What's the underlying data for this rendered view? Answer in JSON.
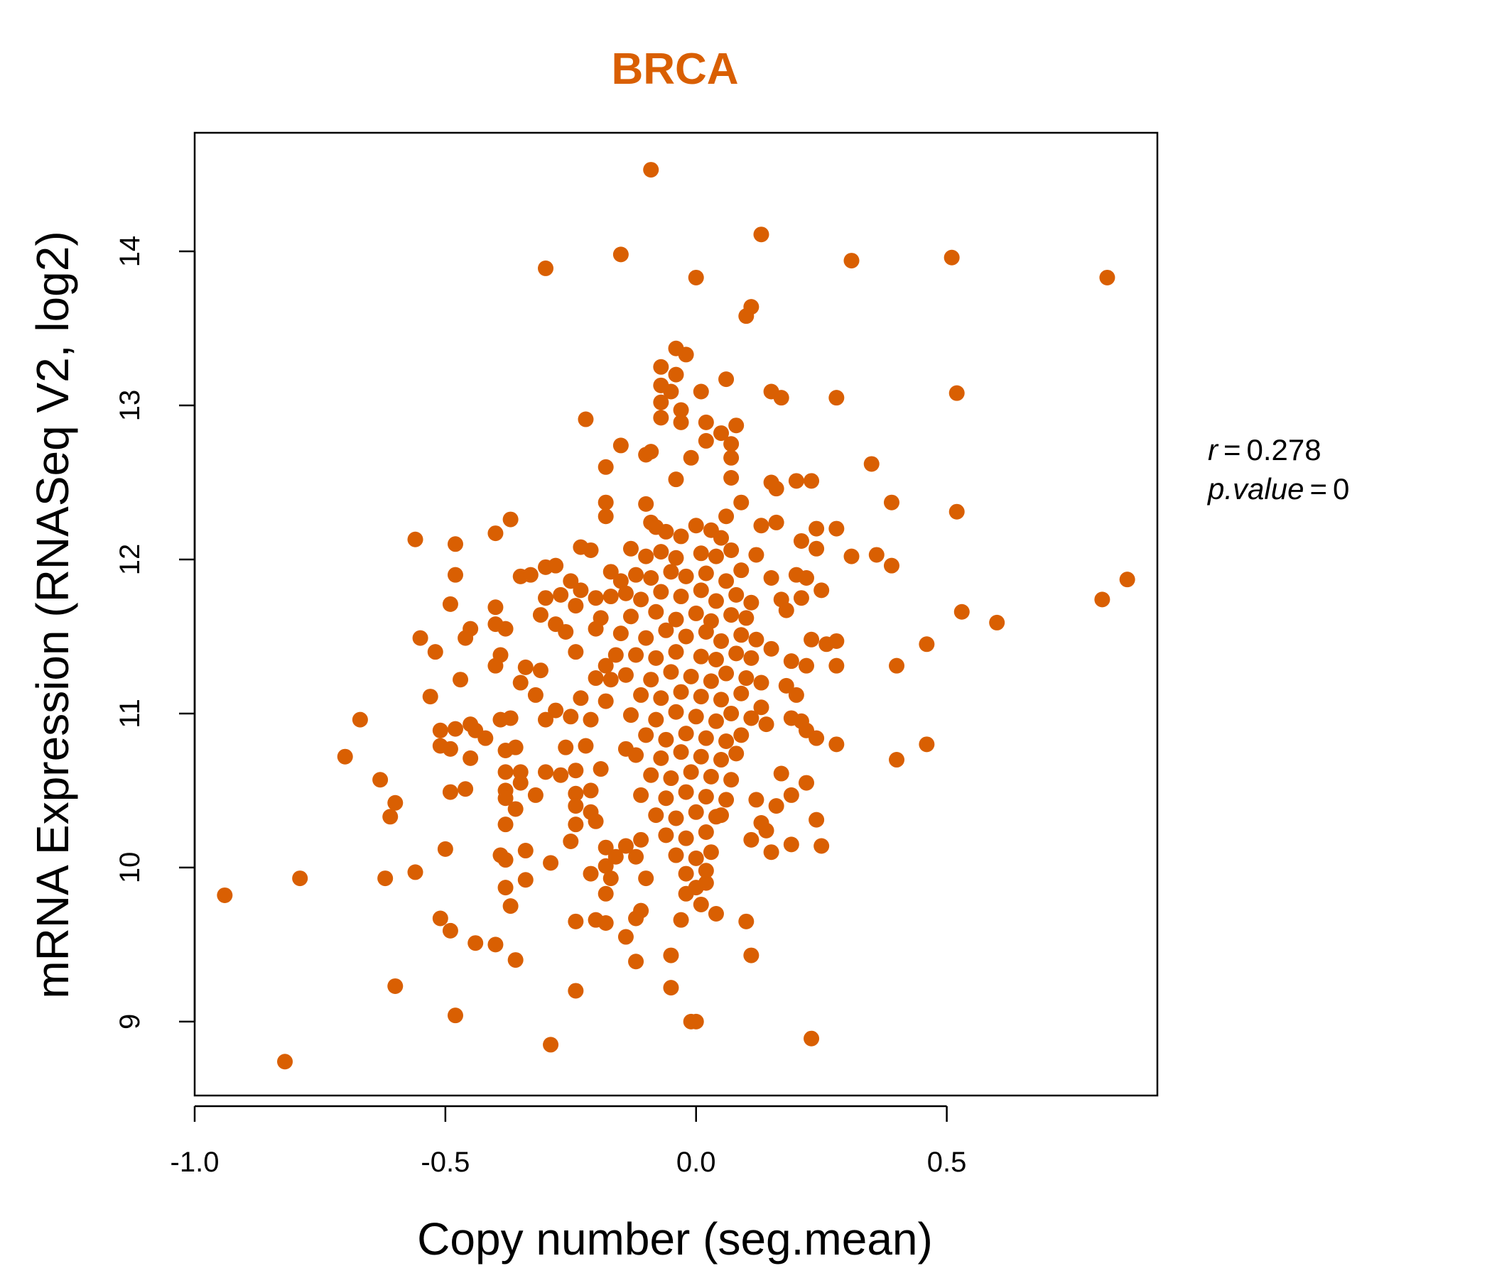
{
  "chart_data": {
    "type": "scatter",
    "title": "BRCA",
    "xlabel": "Copy number (seg.mean)",
    "ylabel": "mRNA Expression (RNASeq V2, log2)",
    "xlim": [
      -1.0,
      0.92
    ],
    "ylim": [
      8.52,
      14.77
    ],
    "x_ticks": [
      -1.0,
      -0.5,
      0.0,
      0.5
    ],
    "x_tick_labels": [
      "-1.0",
      "-0.5",
      "0.0",
      "0.5"
    ],
    "y_ticks": [
      9,
      10,
      11,
      12,
      13,
      14
    ],
    "y_tick_labels": [
      "9",
      "10",
      "11",
      "12",
      "13",
      "14"
    ],
    "grid": false,
    "legend": "none",
    "point_color": "#D95F02",
    "stats": {
      "r_symbol": "r",
      "r_value": "0.278",
      "p_symbol": "p.value",
      "p_value": "0"
    },
    "points": [
      [
        -0.09,
        14.53
      ],
      [
        0.13,
        14.11
      ],
      [
        -0.3,
        13.89
      ],
      [
        -0.15,
        13.98
      ],
      [
        0.0,
        13.83
      ],
      [
        0.31,
        13.94
      ],
      [
        0.51,
        13.96
      ],
      [
        0.82,
        13.83
      ],
      [
        0.11,
        13.64
      ],
      [
        0.1,
        13.58
      ],
      [
        -0.04,
        13.37
      ],
      [
        -0.02,
        13.33
      ],
      [
        -0.07,
        13.25
      ],
      [
        -0.04,
        13.2
      ],
      [
        0.06,
        13.17
      ],
      [
        -0.07,
        13.13
      ],
      [
        -0.05,
        13.09
      ],
      [
        0.01,
        13.09
      ],
      [
        0.15,
        13.09
      ],
      [
        0.17,
        13.05
      ],
      [
        0.28,
        13.05
      ],
      [
        0.52,
        13.08
      ],
      [
        -0.07,
        13.02
      ],
      [
        -0.03,
        12.97
      ],
      [
        -0.22,
        12.91
      ],
      [
        -0.07,
        12.92
      ],
      [
        -0.03,
        12.89
      ],
      [
        0.02,
        12.89
      ],
      [
        0.08,
        12.87
      ],
      [
        0.05,
        12.82
      ],
      [
        -0.15,
        12.74
      ],
      [
        -0.1,
        12.68
      ],
      [
        -0.09,
        12.7
      ],
      [
        0.02,
        12.77
      ],
      [
        0.07,
        12.75
      ],
      [
        -0.01,
        12.66
      ],
      [
        0.07,
        12.66
      ],
      [
        -0.18,
        12.6
      ],
      [
        -0.04,
        12.52
      ],
      [
        0.07,
        12.53
      ],
      [
        0.15,
        12.5
      ],
      [
        0.2,
        12.51
      ],
      [
        0.23,
        12.51
      ],
      [
        0.35,
        12.62
      ],
      [
        0.16,
        12.46
      ],
      [
        -0.18,
        12.37
      ],
      [
        -0.1,
        12.36
      ],
      [
        0.09,
        12.37
      ],
      [
        0.39,
        12.37
      ],
      [
        -0.37,
        12.26
      ],
      [
        -0.18,
        12.28
      ],
      [
        -0.09,
        12.24
      ],
      [
        0.06,
        12.28
      ],
      [
        0.13,
        12.22
      ],
      [
        0.16,
        12.24
      ],
      [
        0.24,
        12.2
      ],
      [
        0.28,
        12.2
      ],
      [
        0.52,
        12.31
      ],
      [
        -0.56,
        12.13
      ],
      [
        -0.4,
        12.17
      ],
      [
        -0.21,
        12.06
      ],
      [
        -0.23,
        12.08
      ],
      [
        -0.13,
        12.07
      ],
      [
        0.12,
        12.03
      ],
      [
        0.21,
        12.12
      ],
      [
        0.24,
        12.07
      ],
      [
        0.31,
        12.02
      ],
      [
        0.36,
        12.03
      ],
      [
        -0.48,
        12.1
      ],
      [
        -0.3,
        11.95
      ],
      [
        -0.28,
        11.96
      ],
      [
        -0.35,
        11.89
      ],
      [
        -0.33,
        11.9
      ],
      [
        -0.17,
        11.92
      ],
      [
        -0.15,
        11.86
      ],
      [
        0.15,
        11.88
      ],
      [
        0.2,
        11.9
      ],
      [
        0.22,
        11.88
      ],
      [
        0.39,
        11.96
      ],
      [
        -0.48,
        11.9
      ],
      [
        -0.25,
        11.86
      ],
      [
        -0.23,
        11.8
      ],
      [
        -0.3,
        11.75
      ],
      [
        -0.27,
        11.77
      ],
      [
        -0.2,
        11.75
      ],
      [
        -0.17,
        11.76
      ],
      [
        0.17,
        11.74
      ],
      [
        0.21,
        11.75
      ],
      [
        0.25,
        11.8
      ],
      [
        0.81,
        11.74
      ],
      [
        0.86,
        11.87
      ],
      [
        -0.49,
        11.71
      ],
      [
        -0.4,
        11.69
      ],
      [
        -0.38,
        11.55
      ],
      [
        -0.31,
        11.64
      ],
      [
        -0.28,
        11.58
      ],
      [
        -0.24,
        11.7
      ],
      [
        -0.19,
        11.62
      ],
      [
        0.18,
        11.67
      ],
      [
        0.53,
        11.66
      ],
      [
        0.6,
        11.59
      ],
      [
        -0.45,
        11.55
      ],
      [
        -0.46,
        11.49
      ],
      [
        -0.55,
        11.49
      ],
      [
        -0.4,
        11.58
      ],
      [
        -0.26,
        11.53
      ],
      [
        -0.2,
        11.55
      ],
      [
        0.23,
        11.48
      ],
      [
        0.26,
        11.45
      ],
      [
        0.28,
        11.47
      ],
      [
        0.46,
        11.45
      ],
      [
        -0.52,
        11.4
      ],
      [
        -0.39,
        11.38
      ],
      [
        -0.24,
        11.4
      ],
      [
        -0.16,
        11.38
      ],
      [
        0.15,
        11.42
      ],
      [
        0.19,
        11.34
      ],
      [
        -0.4,
        11.31
      ],
      [
        -0.34,
        11.3
      ],
      [
        -0.31,
        11.28
      ],
      [
        -0.18,
        11.31
      ],
      [
        0.22,
        11.31
      ],
      [
        0.28,
        11.31
      ],
      [
        0.4,
        11.31
      ],
      [
        -0.47,
        11.22
      ],
      [
        -0.35,
        11.2
      ],
      [
        -0.2,
        11.23
      ],
      [
        -0.17,
        11.22
      ],
      [
        0.13,
        11.2
      ],
      [
        0.18,
        11.18
      ],
      [
        -0.53,
        11.11
      ],
      [
        -0.32,
        11.12
      ],
      [
        -0.23,
        11.1
      ],
      [
        -0.18,
        11.08
      ],
      [
        0.2,
        11.12
      ],
      [
        0.13,
        11.04
      ],
      [
        -0.28,
        11.02
      ],
      [
        -0.25,
        10.98
      ],
      [
        -0.37,
        10.97
      ],
      [
        -0.39,
        10.96
      ],
      [
        -0.3,
        10.96
      ],
      [
        -0.21,
        10.96
      ],
      [
        0.19,
        10.97
      ],
      [
        0.21,
        10.95
      ],
      [
        -0.67,
        10.96
      ],
      [
        -0.51,
        10.89
      ],
      [
        -0.48,
        10.9
      ],
      [
        -0.45,
        10.93
      ],
      [
        -0.44,
        10.89
      ],
      [
        0.14,
        10.93
      ],
      [
        0.22,
        10.89
      ],
      [
        -0.42,
        10.84
      ],
      [
        -0.38,
        10.76
      ],
      [
        -0.36,
        10.78
      ],
      [
        -0.26,
        10.78
      ],
      [
        -0.22,
        10.79
      ],
      [
        -0.14,
        10.77
      ],
      [
        0.24,
        10.84
      ],
      [
        0.28,
        10.8
      ],
      [
        0.46,
        10.8
      ],
      [
        -0.7,
        10.72
      ],
      [
        -0.51,
        10.79
      ],
      [
        -0.49,
        10.77
      ],
      [
        -0.45,
        10.71
      ],
      [
        -0.38,
        10.62
      ],
      [
        -0.35,
        10.62
      ],
      [
        -0.3,
        10.62
      ],
      [
        -0.27,
        10.6
      ],
      [
        -0.24,
        10.63
      ],
      [
        -0.19,
        10.64
      ],
      [
        0.17,
        10.61
      ],
      [
        0.4,
        10.7
      ],
      [
        -0.63,
        10.57
      ],
      [
        -0.38,
        10.5
      ],
      [
        -0.35,
        10.55
      ],
      [
        -0.32,
        10.47
      ],
      [
        -0.24,
        10.48
      ],
      [
        -0.21,
        10.5
      ],
      [
        0.12,
        10.44
      ],
      [
        0.19,
        10.47
      ],
      [
        0.22,
        10.55
      ],
      [
        -0.49,
        10.49
      ],
      [
        -0.46,
        10.51
      ],
      [
        -0.6,
        10.42
      ],
      [
        -0.38,
        10.45
      ],
      [
        -0.36,
        10.38
      ],
      [
        -0.24,
        10.4
      ],
      [
        -0.21,
        10.36
      ],
      [
        0.16,
        10.4
      ],
      [
        -0.61,
        10.33
      ],
      [
        -0.38,
        10.28
      ],
      [
        -0.24,
        10.28
      ],
      [
        -0.2,
        10.3
      ],
      [
        0.05,
        10.34
      ],
      [
        0.13,
        10.29
      ],
      [
        0.24,
        10.31
      ],
      [
        -0.25,
        10.17
      ],
      [
        -0.18,
        10.13
      ],
      [
        -0.16,
        10.07
      ],
      [
        -0.14,
        10.14
      ],
      [
        -0.11,
        10.18
      ],
      [
        0.11,
        10.18
      ],
      [
        0.14,
        10.24
      ],
      [
        0.19,
        10.15
      ],
      [
        -0.5,
        10.12
      ],
      [
        -0.39,
        10.08
      ],
      [
        -0.38,
        10.05
      ],
      [
        -0.34,
        10.11
      ],
      [
        -0.29,
        10.03
      ],
      [
        -0.18,
        10.01
      ],
      [
        -0.12,
        10.07
      ],
      [
        0.15,
        10.1
      ],
      [
        0.25,
        10.14
      ],
      [
        -0.79,
        9.93
      ],
      [
        -0.62,
        9.93
      ],
      [
        -0.56,
        9.97
      ],
      [
        -0.38,
        9.87
      ],
      [
        -0.34,
        9.92
      ],
      [
        -0.21,
        9.96
      ],
      [
        -0.17,
        9.93
      ],
      [
        -0.1,
        9.93
      ],
      [
        0.0,
        9.87
      ],
      [
        0.02,
        9.9
      ],
      [
        -0.94,
        9.82
      ],
      [
        -0.37,
        9.75
      ],
      [
        -0.18,
        9.83
      ],
      [
        -0.02,
        9.83
      ],
      [
        0.01,
        9.76
      ],
      [
        -0.51,
        9.67
      ],
      [
        -0.49,
        9.59
      ],
      [
        -0.24,
        9.65
      ],
      [
        -0.2,
        9.66
      ],
      [
        -0.18,
        9.64
      ],
      [
        -0.12,
        9.67
      ],
      [
        -0.11,
        9.72
      ],
      [
        -0.03,
        9.66
      ],
      [
        0.04,
        9.7
      ],
      [
        0.1,
        9.65
      ],
      [
        -0.44,
        9.51
      ],
      [
        -0.4,
        9.5
      ],
      [
        -0.36,
        9.4
      ],
      [
        -0.14,
        9.55
      ],
      [
        -0.12,
        9.39
      ],
      [
        -0.05,
        9.43
      ],
      [
        0.11,
        9.43
      ],
      [
        -0.6,
        9.23
      ],
      [
        -0.24,
        9.2
      ],
      [
        -0.05,
        9.22
      ],
      [
        -0.48,
        9.04
      ],
      [
        -0.01,
        9.0
      ],
      [
        0.0,
        9.0
      ],
      [
        -0.29,
        8.85
      ],
      [
        0.23,
        8.89
      ],
      [
        -0.82,
        8.74
      ],
      [
        -0.08,
        12.21
      ],
      [
        -0.06,
        12.18
      ],
      [
        -0.03,
        12.15
      ],
      [
        0.0,
        12.22
      ],
      [
        0.03,
        12.19
      ],
      [
        0.05,
        12.14
      ],
      [
        -0.1,
        12.02
      ],
      [
        -0.07,
        12.05
      ],
      [
        -0.04,
        12.01
      ],
      [
        0.01,
        12.04
      ],
      [
        0.04,
        12.02
      ],
      [
        0.07,
        12.06
      ],
      [
        -0.12,
        11.9
      ],
      [
        -0.09,
        11.88
      ],
      [
        -0.05,
        11.92
      ],
      [
        -0.02,
        11.89
      ],
      [
        0.02,
        11.91
      ],
      [
        0.06,
        11.86
      ],
      [
        0.09,
        11.93
      ],
      [
        -0.14,
        11.78
      ],
      [
        -0.11,
        11.74
      ],
      [
        -0.07,
        11.79
      ],
      [
        -0.03,
        11.76
      ],
      [
        0.01,
        11.8
      ],
      [
        0.04,
        11.73
      ],
      [
        0.08,
        11.77
      ],
      [
        0.11,
        11.72
      ],
      [
        -0.13,
        11.63
      ],
      [
        -0.08,
        11.66
      ],
      [
        -0.04,
        11.61
      ],
      [
        0.0,
        11.65
      ],
      [
        0.03,
        11.6
      ],
      [
        0.07,
        11.64
      ],
      [
        0.1,
        11.62
      ],
      [
        -0.15,
        11.52
      ],
      [
        -0.1,
        11.49
      ],
      [
        -0.06,
        11.54
      ],
      [
        -0.02,
        11.5
      ],
      [
        0.02,
        11.53
      ],
      [
        0.05,
        11.47
      ],
      [
        0.09,
        11.51
      ],
      [
        0.12,
        11.48
      ],
      [
        -0.12,
        11.38
      ],
      [
        -0.08,
        11.36
      ],
      [
        -0.04,
        11.4
      ],
      [
        0.01,
        11.37
      ],
      [
        0.04,
        11.35
      ],
      [
        0.08,
        11.39
      ],
      [
        0.11,
        11.36
      ],
      [
        -0.14,
        11.25
      ],
      [
        -0.09,
        11.22
      ],
      [
        -0.05,
        11.27
      ],
      [
        -0.01,
        11.24
      ],
      [
        0.03,
        11.21
      ],
      [
        0.06,
        11.26
      ],
      [
        0.1,
        11.23
      ],
      [
        -0.11,
        11.12
      ],
      [
        -0.07,
        11.1
      ],
      [
        -0.03,
        11.14
      ],
      [
        0.01,
        11.11
      ],
      [
        0.05,
        11.09
      ],
      [
        0.09,
        11.13
      ],
      [
        -0.13,
        10.99
      ],
      [
        -0.08,
        10.96
      ],
      [
        -0.04,
        11.01
      ],
      [
        0.0,
        10.98
      ],
      [
        0.04,
        10.95
      ],
      [
        0.07,
        11.0
      ],
      [
        0.11,
        10.97
      ],
      [
        -0.1,
        10.86
      ],
      [
        -0.06,
        10.83
      ],
      [
        -0.02,
        10.87
      ],
      [
        0.02,
        10.84
      ],
      [
        0.06,
        10.82
      ],
      [
        0.09,
        10.86
      ],
      [
        -0.12,
        10.73
      ],
      [
        -0.07,
        10.71
      ],
      [
        -0.03,
        10.75
      ],
      [
        0.01,
        10.72
      ],
      [
        0.05,
        10.7
      ],
      [
        0.08,
        10.74
      ],
      [
        -0.09,
        10.6
      ],
      [
        -0.05,
        10.58
      ],
      [
        -0.01,
        10.62
      ],
      [
        0.03,
        10.59
      ],
      [
        0.07,
        10.57
      ],
      [
        -0.11,
        10.47
      ],
      [
        -0.06,
        10.45
      ],
      [
        -0.02,
        10.49
      ],
      [
        0.02,
        10.46
      ],
      [
        0.06,
        10.44
      ],
      [
        -0.08,
        10.34
      ],
      [
        -0.04,
        10.32
      ],
      [
        0.0,
        10.36
      ],
      [
        0.04,
        10.33
      ],
      [
        -0.06,
        10.21
      ],
      [
        -0.02,
        10.19
      ],
      [
        0.02,
        10.23
      ],
      [
        -0.04,
        10.08
      ],
      [
        0.0,
        10.06
      ],
      [
        0.03,
        10.1
      ],
      [
        -0.02,
        9.96
      ],
      [
        0.02,
        9.98
      ]
    ]
  }
}
